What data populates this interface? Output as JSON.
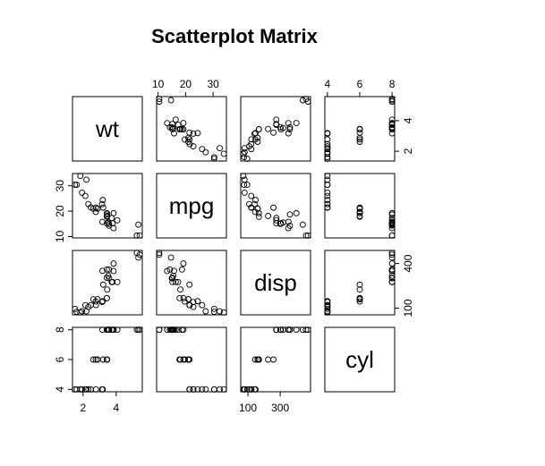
{
  "chart_data": {
    "type": "scatter-matrix",
    "title": "Scatterplot Matrix",
    "color": "#000000",
    "variables": [
      {
        "name": "wt",
        "lim": [
          1.36,
          5.58
        ],
        "xticks": [
          2,
          4
        ],
        "yticks": [
          2,
          4
        ],
        "values": [
          2.62,
          2.875,
          2.32,
          3.215,
          3.44,
          3.46,
          3.57,
          3.19,
          3.15,
          3.44,
          3.44,
          4.07,
          3.73,
          3.78,
          5.25,
          5.424,
          5.345,
          2.2,
          1.615,
          1.835,
          2.465,
          3.52,
          3.435,
          3.84,
          3.845,
          1.935,
          2.14,
          1.513,
          3.17,
          2.77,
          3.57,
          2.78
        ]
      },
      {
        "name": "mpg",
        "lim": [
          9.46,
          34.84
        ],
        "xticks": [
          10,
          20,
          30
        ],
        "yticks": [
          10,
          20,
          30
        ],
        "values": [
          21,
          21,
          22.8,
          21.4,
          18.7,
          18.1,
          14.3,
          24.4,
          22.8,
          19.2,
          17.8,
          16.4,
          17.3,
          15.2,
          10.4,
          10.4,
          14.7,
          32.4,
          30.4,
          33.9,
          21.5,
          15.5,
          15.2,
          13.3,
          19.2,
          27.3,
          26,
          30.4,
          15.8,
          19.7,
          15,
          21.4
        ]
      },
      {
        "name": "disp",
        "lim": [
          55,
          488
        ],
        "xticks": [
          100,
          300
        ],
        "yticks": [
          100,
          400
        ],
        "values": [
          160,
          160,
          108,
          258,
          360,
          225,
          360,
          146.7,
          140.8,
          167.6,
          167.6,
          275.8,
          275.8,
          275.8,
          472,
          460,
          440,
          78.7,
          75.7,
          71.1,
          120.1,
          318,
          304,
          350,
          400,
          79,
          120.3,
          95.1,
          351,
          145,
          301,
          121
        ]
      },
      {
        "name": "cyl",
        "lim": [
          3.84,
          8.16
        ],
        "xticks": [
          4,
          6,
          8
        ],
        "yticks": [
          4,
          6,
          8
        ],
        "values": [
          6,
          6,
          4,
          6,
          8,
          6,
          8,
          4,
          4,
          6,
          6,
          8,
          8,
          8,
          8,
          8,
          8,
          4,
          4,
          4,
          4,
          8,
          8,
          8,
          8,
          4,
          4,
          4,
          8,
          6,
          8,
          4
        ]
      }
    ]
  }
}
